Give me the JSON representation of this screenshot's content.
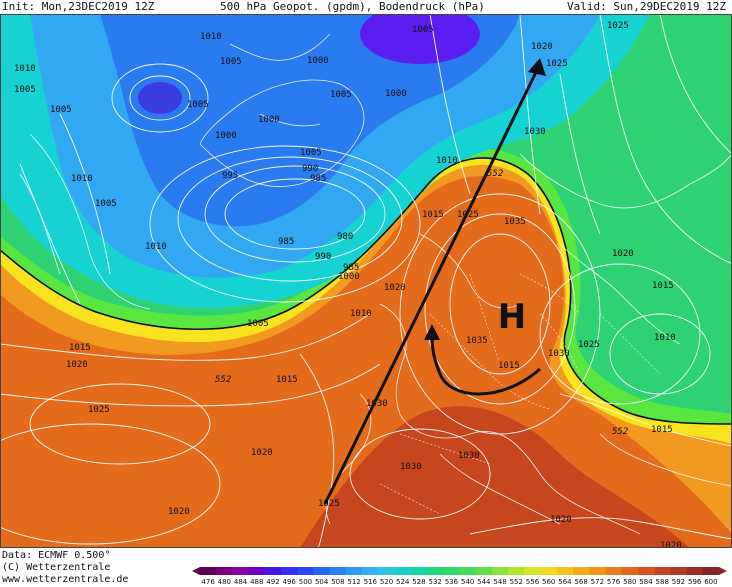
{
  "header": {
    "init": "Init: Mon,23DEC2019 12Z",
    "title": "500 hPa Geopot. (gpdm), Bodendruck (hPa)",
    "valid": "Valid: Sun,29DEC2019 12Z"
  },
  "map": {
    "high_symbol": "H",
    "geopotential_labels": [
      "552",
      "552",
      "552"
    ],
    "isobar_labels": [
      "1010",
      "1010",
      "1005",
      "1005",
      "1005",
      "1005",
      "1000",
      "1005",
      "1020",
      "1025",
      "1005",
      "1000",
      "1000",
      "1000",
      "1005",
      "990",
      "985",
      "995",
      "985",
      "980",
      "990",
      "985",
      "1000",
      "1030",
      "1010",
      "1010",
      "1005",
      "1015",
      "1025",
      "1035",
      "1020",
      "1020",
      "1010",
      "1010",
      "1005",
      "1015",
      "1020",
      "1015",
      "1025",
      "1035",
      "1030",
      "1015",
      "1025",
      "1030",
      "1020",
      "1015",
      "1010",
      "1030",
      "1030",
      "1020",
      "1025",
      "1020",
      "1025",
      "1015",
      "1020"
    ],
    "colors": {
      "low_purple": "#5a1ef0",
      "blue": "#2a7af0",
      "light_blue": "#33a8f2",
      "cyan": "#17d2d2",
      "green": "#2ed273",
      "light_green": "#5ae641",
      "yellow": "#f7e41f",
      "orange": "#f29a1f",
      "dark_orange": "#e46a1c",
      "red": "#c8461e"
    }
  },
  "footer": {
    "data": "Data: ECMWF   0.500°",
    "copyright": "(C) Wetterzentrale",
    "url": "www.wetterzentrale.de"
  },
  "legend": {
    "values": [
      "476",
      "480",
      "484",
      "488",
      "492",
      "496",
      "500",
      "504",
      "508",
      "512",
      "516",
      "520",
      "524",
      "528",
      "532",
      "536",
      "540",
      "544",
      "548",
      "552",
      "556",
      "560",
      "564",
      "568",
      "572",
      "576",
      "580",
      "584",
      "588",
      "592",
      "596",
      "600"
    ],
    "colors": [
      "#5c0050",
      "#7a0078",
      "#8a00a6",
      "#6a00c8",
      "#4a14e0",
      "#3a2cf0",
      "#2c48f2",
      "#2466f2",
      "#2a80f4",
      "#2f9af4",
      "#33b0f2",
      "#2cc6e2",
      "#1ad0c4",
      "#14d4a0",
      "#1ed67e",
      "#2ed86a",
      "#44dc58",
      "#60e046",
      "#88e43c",
      "#b0e632",
      "#d8e428",
      "#f2d81e",
      "#f6c21c",
      "#f4aa1c",
      "#f0941c",
      "#ea7e1c",
      "#e0681c",
      "#d4561e",
      "#c44620",
      "#b23a22",
      "#9c2e24",
      "#862428"
    ]
  }
}
